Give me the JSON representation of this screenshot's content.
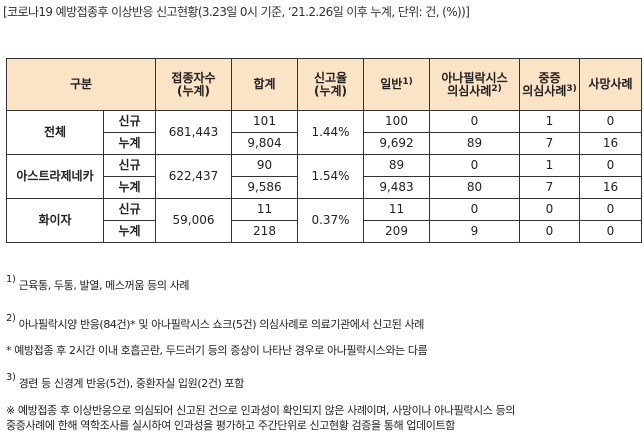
{
  "title": "[코로나19 예방접종후 이상반응 신고현황(3.23일 0시 기준, ‘21.2.26일 이후 누계, 단위: 건, (%))]",
  "headers": {
    "category": "구분",
    "vaccinated_1": "접종자수",
    "vaccinated_2": "(누계)",
    "total": "합계",
    "rate_1": "신고율",
    "rate_2": "(누계)",
    "general": "일반",
    "general_sup": "1)",
    "anaphylaxis_1": "아나필락시스",
    "anaphylaxis_2": "의심사례",
    "anaphylaxis_sup": "2)",
    "serious_1": "중증",
    "serious_2": "의심사례",
    "serious_sup": "3)",
    "death": "사망사례"
  },
  "rows": [
    {
      "name": "전체",
      "vaccinated": "681,443",
      "rate": "1.44%",
      "new": {
        "label": "신규",
        "total": "101",
        "general": "100",
        "anaphylaxis": "0",
        "serious": "1",
        "death": "0"
      },
      "cum": {
        "label": "누계",
        "total": "9,804",
        "general": "9,692",
        "anaphylaxis": "89",
        "serious": "7",
        "death": "16"
      }
    },
    {
      "name": "아스트라제네카",
      "vaccinated": "622,437",
      "rate": "1.54%",
      "new": {
        "label": "신규",
        "total": "90",
        "general": "89",
        "anaphylaxis": "0",
        "serious": "1",
        "death": "0"
      },
      "cum": {
        "label": "누계",
        "total": "9,586",
        "general": "9,483",
        "anaphylaxis": "80",
        "serious": "7",
        "death": "16"
      }
    },
    {
      "name": "화이자",
      "vaccinated": "59,006",
      "rate": "0.37%",
      "new": {
        "label": "신규",
        "total": "11",
        "general": "11",
        "anaphylaxis": "0",
        "serious": "0",
        "death": "0"
      },
      "cum": {
        "label": "누계",
        "total": "218",
        "general": "209",
        "anaphylaxis": "9",
        "serious": "0",
        "death": "0"
      }
    }
  ],
  "notes": {
    "n1_sup": "1)",
    "n1": " 근육통, 두통, 발열, 메스꺼움 등의 사례",
    "n2_sup": "2)",
    "n2": " 아나필락시양 반응(84건)* 및 아나필락시스 쇼크(5건) 의심사례로 의료기관에서 신고된 사례",
    "n2_star": "* 예방접종 후 2시간 이내 호흡곤란, 두드러기 등의 증상이 나타난 경우로 아나필락시스와는 다름",
    "n3_sup": "3)",
    "n3": " 경련 등 신경계 반응(5건), 중환자실 입원(2건) 포함",
    "n4_line1": "※ 예방접종 후 이상반응으로 의심되어 신고된 건으로 인과성이 확인되지 않은 사례이며, 사망이나 아나필락시스 등의",
    "n4_line2": "중증사례에 한해 역학조사를 실시하여 인과성을 평가하고 주간단위로 신고현황 검증을 통해 업데이트함"
  }
}
